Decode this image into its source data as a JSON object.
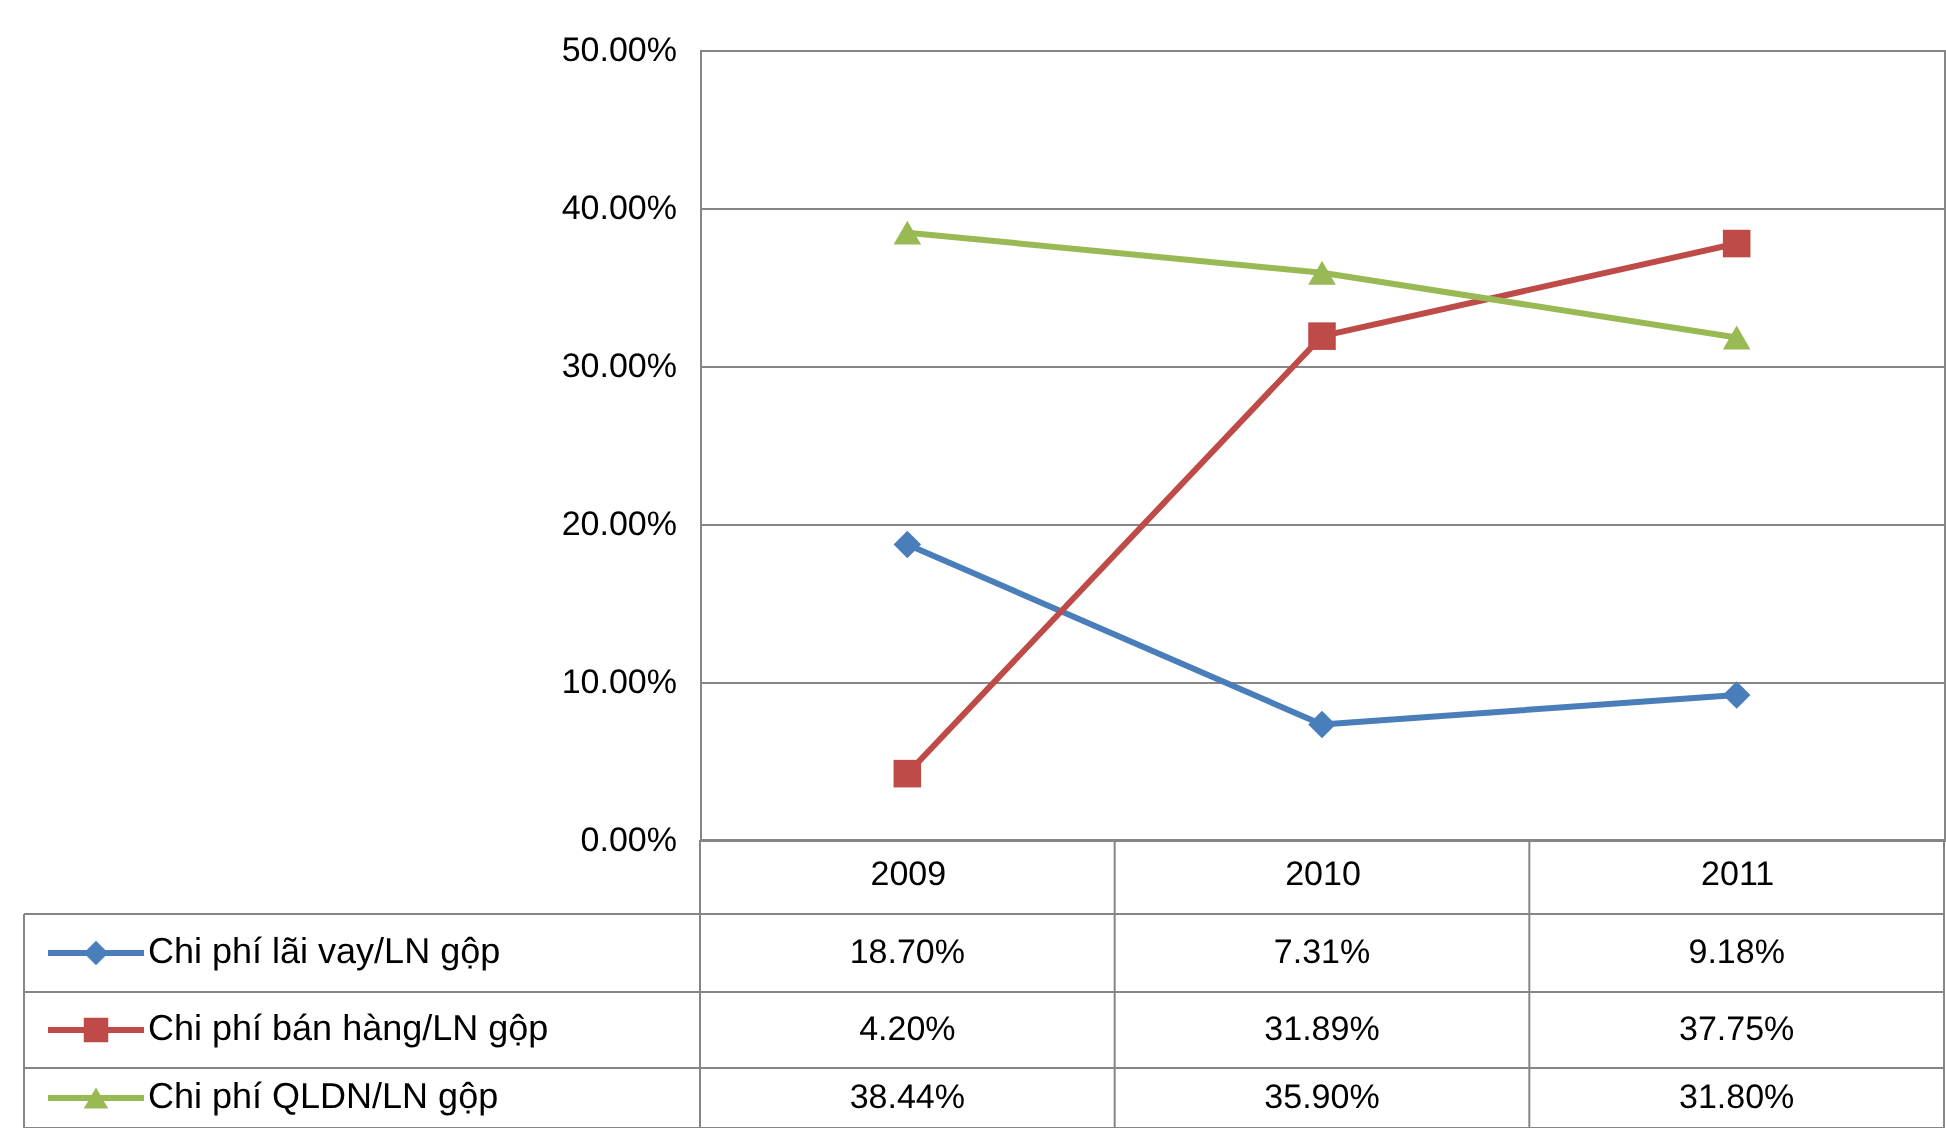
{
  "chart_data": {
    "type": "line",
    "categories": [
      "2009",
      "2010",
      "2011"
    ],
    "series": [
      {
        "name": "Chi phí lãi vay/LN gộp",
        "color": "#4a7ebb",
        "marker": "diamond",
        "values": [
          18.7,
          7.31,
          9.18
        ],
        "value_labels": [
          "18.70%",
          "7.31%",
          "9.18%"
        ]
      },
      {
        "name": "Chi phí bán hàng/LN gộp",
        "color": "#be4b48",
        "marker": "square",
        "values": [
          4.2,
          31.89,
          37.75
        ],
        "value_labels": [
          "4.20%",
          "31.89%",
          "37.75%"
        ]
      },
      {
        "name": "Chi phí QLDN/LN gộp",
        "color": "#98b954",
        "marker": "triangle",
        "values": [
          38.44,
          35.9,
          31.8
        ],
        "value_labels": [
          "38.44%",
          "35.90%",
          "31.80%"
        ]
      }
    ],
    "ylim": [
      0,
      50
    ],
    "yticks": [
      {
        "value": 0,
        "label": "0.00%"
      },
      {
        "value": 10,
        "label": "10.00%"
      },
      {
        "value": 20,
        "label": "20.00%"
      },
      {
        "value": 30,
        "label": "30.00%"
      },
      {
        "value": 40,
        "label": "40.00%"
      },
      {
        "value": 50,
        "label": "50.00%"
      }
    ],
    "grid": "y",
    "legend": "bottom",
    "line_style": "solid"
  }
}
